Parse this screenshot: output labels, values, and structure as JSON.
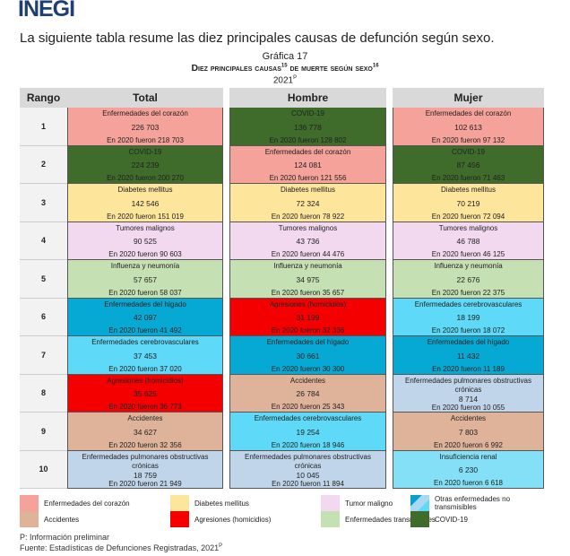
{
  "header": {
    "logo": "INEGI",
    "intro": "La siguiente tabla resume las diez principales causas de defunción según sexo.",
    "grafica": "Gráfica 17",
    "title": "Diez principales causas",
    "title_sup1": "15",
    "title_mid": " de muerte según sexo",
    "title_sup2": "16",
    "year": "2021",
    "year_sup": "P"
  },
  "columns": {
    "rango": "Rango",
    "total": "Total",
    "hombre": "Hombre",
    "mujer": "Mujer"
  },
  "colors": {
    "corazon": "#f5a29b",
    "covid": "#3f6b2b",
    "diabetes": "#fde59c",
    "tumor": "#f3d9ef",
    "influenza": "#c5e0b3",
    "higado": "#05a9d3",
    "cerebro": "#5ed9f7",
    "agresiones": "#f40000",
    "accidentes": "#dfb39a",
    "pulmonar": "#c1d5ea",
    "renal": "#84e0f7",
    "otras_a": "#0aa0cc",
    "otras_b": "#a8d8f2"
  },
  "rows": [
    {
      "rank": "1",
      "cells": [
        {
          "cause": "Enfermedades del corazón",
          "value": "226 703",
          "prev": "En 2020 fueron 218 703",
          "c": "corazon"
        },
        {
          "cause": "COVID-19",
          "value": "136 778",
          "prev": "En 2020 fueron 128 802",
          "c": "covid"
        },
        {
          "cause": "Enfermedades del corazón",
          "value": "102 613",
          "prev": "En 2020 fueron 97 132",
          "c": "corazon"
        }
      ]
    },
    {
      "rank": "2",
      "cells": [
        {
          "cause": "COVID-19",
          "value": "224 239",
          "prev": "En 2020 fueron 200 270",
          "c": "covid"
        },
        {
          "cause": "Enfermedades del corazón",
          "value": "124 081",
          "prev": "En 2020 fueron 121 556",
          "c": "corazon"
        },
        {
          "cause": "COVID-19",
          "value": "87 456",
          "prev": "En 2020 fueron 71 463",
          "c": "covid"
        }
      ]
    },
    {
      "rank": "3",
      "cells": [
        {
          "cause": "Diabetes mellitus",
          "value": "142 546",
          "prev": "En 2020 fueron 151 019",
          "c": "diabetes"
        },
        {
          "cause": "Diabetes mellitus",
          "value": "72 324",
          "prev": "En 2020 fueron 78 922",
          "c": "diabetes"
        },
        {
          "cause": "Diabetes mellitus",
          "value": "70 219",
          "prev": "En 2020 fueron 72 094",
          "c": "diabetes"
        }
      ]
    },
    {
      "rank": "4",
      "cells": [
        {
          "cause": "Tumores malignos",
          "value": "90 525",
          "prev": "En 2020 fueron 90 603",
          "c": "tumor"
        },
        {
          "cause": "Tumores malignos",
          "value": "43 736",
          "prev": "En 2020 fueron 44 476",
          "c": "tumor"
        },
        {
          "cause": "Tumores malignos",
          "value": "46 788",
          "prev": "En 2020 fueron 46 125",
          "c": "tumor"
        }
      ]
    },
    {
      "rank": "5",
      "cells": [
        {
          "cause": "Influenza y neumonía",
          "value": "57 657",
          "prev": "En 2020 fueron 58 037",
          "c": "influenza"
        },
        {
          "cause": "Influenza y neumonía",
          "value": "34 975",
          "prev": "En 2020 fueron 35 657",
          "c": "influenza"
        },
        {
          "cause": "Influenza y neumonía",
          "value": "22 676",
          "prev": "En 2020 fueron 22 375",
          "c": "influenza"
        }
      ]
    },
    {
      "rank": "6",
      "cells": [
        {
          "cause": "Enfermedades del hígado",
          "value": "42 097",
          "prev": "En 2020 fueron 41 492",
          "c": "higado"
        },
        {
          "cause": "Agresiones (homicidios)",
          "value": "31 199",
          "prev": "En 2020 fueron 32 336",
          "c": "agresiones"
        },
        {
          "cause": "Enfermedades cerebrovasculares",
          "value": "18 199",
          "prev": "En 2020 fueron 18 072",
          "c": "cerebro"
        }
      ]
    },
    {
      "rank": "7",
      "cells": [
        {
          "cause": "Enfermedades cerebrovasculares",
          "value": "37 453",
          "prev": "En 2020 fueron 37 020",
          "c": "cerebro"
        },
        {
          "cause": "Enfermedades del hígado",
          "value": "30 661",
          "prev": "En 2020 fueron 30 300",
          "c": "higado"
        },
        {
          "cause": "Enfermedades del hígado",
          "value": "11 432",
          "prev": "En 2020 fueron 11 189",
          "c": "higado"
        }
      ]
    },
    {
      "rank": "8",
      "cells": [
        {
          "cause": "Agresiones (homicidios)",
          "value": "35 625",
          "prev": "En 2020 fueron 36 773",
          "c": "agresiones"
        },
        {
          "cause": "Accidentes",
          "value": "26 784",
          "prev": "En 2020 fueron 25 343",
          "c": "accidentes"
        },
        {
          "cause": "Enfermedades pulmonares obstructivas crónicas",
          "value": "8 714",
          "prev": "En 2020 fueron 10 055",
          "c": "pulmonar"
        }
      ]
    },
    {
      "rank": "9",
      "cells": [
        {
          "cause": "Accidentes",
          "value": "34 627",
          "prev": "En 2020 fueron 32 356",
          "c": "accidentes"
        },
        {
          "cause": "Enfermedades cerebrovasculares",
          "value": "19 254",
          "prev": "En 2020 fueron 18 946",
          "c": "cerebro"
        },
        {
          "cause": "Accidentes",
          "value": "7 803",
          "prev": "En 2020 fueron 6 992",
          "c": "accidentes"
        }
      ]
    },
    {
      "rank": "10",
      "cells": [
        {
          "cause": "Enfermedades pulmonares obstructivas crónicas",
          "value": "18 759",
          "prev": "En 2020 fueron 21 949",
          "c": "pulmonar"
        },
        {
          "cause": "Enfermedades pulmonares obstructivas crónicas",
          "value": "10 045",
          "prev": "En 2020 fueron 11 894",
          "c": "pulmonar"
        },
        {
          "cause": "Insuficiencia renal",
          "value": "6 230",
          "prev": "En 2020 fueron 6 618",
          "c": "renal"
        }
      ]
    }
  ],
  "legend": [
    {
      "label": "Enfermedades del corazón",
      "c": "corazon"
    },
    {
      "label": "Diabetes mellitus",
      "c": "diabetes"
    },
    {
      "label": "Tumor maligno",
      "c": "tumor"
    },
    {
      "label": "Otras enfermedades no transmisibles",
      "c": "otras"
    },
    {
      "label": "Accidentes",
      "c": "accidentes"
    },
    {
      "label": "Agresiones (homicidios)",
      "c": "agresiones"
    },
    {
      "label": "Enfermedades transmisibles",
      "c": "influenza"
    },
    {
      "label": "COVID-19",
      "c": "covid"
    }
  ],
  "footer": {
    "note": "P: Información preliminar",
    "source": "Fuente: Estadísticas de Defunciones Registradas, 2021",
    "source_sup": "P"
  }
}
